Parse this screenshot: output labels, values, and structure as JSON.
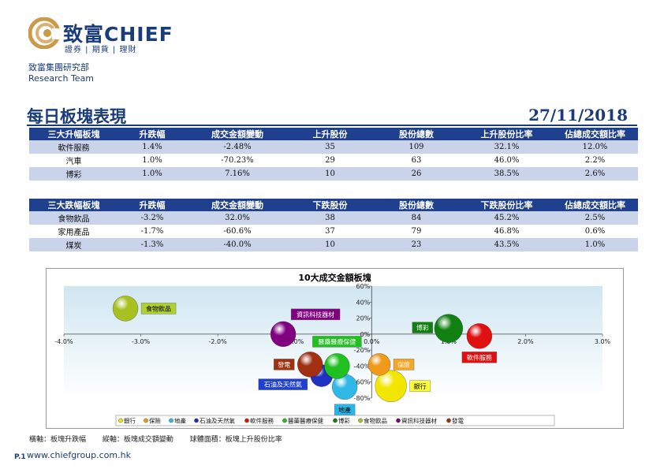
{
  "header": {
    "logo_text": "致富CHIEF",
    "logo_sub": "證券 | 期貨 | 理財",
    "dept_line1": "致富集團研究部",
    "dept_line2": "Research Team"
  },
  "title": "每日板塊表現",
  "date": "27/11/2018",
  "rise_table": {
    "headers": [
      "三大升幅板塊",
      "升跌幅",
      "成交金額變動",
      "上升股份",
      "股份總數",
      "上升股份比率",
      "佔總成交額比率"
    ],
    "rows": [
      [
        "軟件服務",
        "1.4%",
        "-2.48%",
        "35",
        "109",
        "32.1%",
        "12.0%"
      ],
      [
        "汽車",
        "1.0%",
        "-70.23%",
        "29",
        "63",
        "46.0%",
        "2.2%"
      ],
      [
        "博彩",
        "1.0%",
        "7.16%",
        "10",
        "26",
        "38.5%",
        "2.6%"
      ]
    ]
  },
  "fall_table": {
    "headers": [
      "三大跌幅板塊",
      "升跌幅",
      "成交金額變動",
      "下跌股份",
      "股份總數",
      "下跌股份比率",
      "佔總成交額比率"
    ],
    "rows": [
      [
        "食物飲品",
        "-3.2%",
        "32.0%",
        "38",
        "84",
        "45.2%",
        "2.5%"
      ],
      [
        "家用產品",
        "-1.7%",
        "-60.6%",
        "37",
        "79",
        "46.8%",
        "0.6%"
      ],
      [
        "煤炭",
        "-1.3%",
        "-40.0%",
        "10",
        "23",
        "43.5%",
        "1.0%"
      ]
    ]
  },
  "chart_data": {
    "type": "bubble",
    "title": "10大成交金額板塊",
    "x_ticks": [
      "-4.0%",
      "-3.0%",
      "-2.0%",
      "-1.0%",
      "0.0%",
      "1.0%",
      "2.0%",
      "3.0%"
    ],
    "y_ticks": [
      "60%",
      "40%",
      "20%",
      "0%",
      "-20%",
      "-40%",
      "-60%",
      "-80%"
    ],
    "xlim": [
      -4.0,
      3.0
    ],
    "ylim": [
      -80,
      60
    ],
    "grid": false,
    "legend_position": "bottom",
    "series": [
      {
        "name": "銀行",
        "x": 0.25,
        "y": -65,
        "color": "#f2e600",
        "label_color": "#ffff33",
        "label_text_color": "#000000",
        "r": 20
      },
      {
        "name": "保險",
        "x": 0.1,
        "y": -38,
        "color": "#f09a1a",
        "label_color": "#f5a623",
        "label_text_color": "#ffffff",
        "r": 14
      },
      {
        "name": "地產",
        "x": -0.35,
        "y": -66,
        "color": "#30b8e6",
        "label_color": "#29b6e8",
        "label_text_color": "#000000",
        "r": 16
      },
      {
        "name": "石油及天然氣",
        "x": -0.65,
        "y": -52,
        "color": "#2030c0",
        "label_color": "#2040d0",
        "label_text_color": "#ffffff",
        "r": 14
      },
      {
        "name": "軟件服務",
        "x": 1.4,
        "y": -2.48,
        "color": "#e01010",
        "label_color": "#e01010",
        "label_text_color": "#ffffff",
        "r": 16
      },
      {
        "name": "醫藥醫療保健",
        "x": -0.45,
        "y": -40,
        "color": "#20c020",
        "label_color": "#20c020",
        "label_text_color": "#ffffff",
        "r": 16
      },
      {
        "name": "博彩",
        "x": 1.0,
        "y": 7.16,
        "color": "#108010",
        "label_color": "#108010",
        "label_text_color": "#ffffff",
        "r": 18
      },
      {
        "name": "食物飲品",
        "x": -3.2,
        "y": 32.0,
        "color": "#a8c020",
        "label_color": "#b0d030",
        "label_text_color": "#000000",
        "r": 16
      },
      {
        "name": "資訊科技器材",
        "x": -1.15,
        "y": 0,
        "color": "#800080",
        "label_color": "#800080",
        "label_text_color": "#ffffff",
        "r": 16
      },
      {
        "name": "發電",
        "x": -0.8,
        "y": -38,
        "color": "#a03010",
        "label_color": "#a03010",
        "label_text_color": "#ffffff",
        "r": 16
      }
    ]
  },
  "footnote": {
    "x_desc": "橫軸：板塊升跌幅",
    "y_desc": "縱軸：板塊成交額變動",
    "size_desc": "球體面積：板塊上升股份比率"
  },
  "page_no": "P.1",
  "website": "www.chiefgroup.com.hk"
}
